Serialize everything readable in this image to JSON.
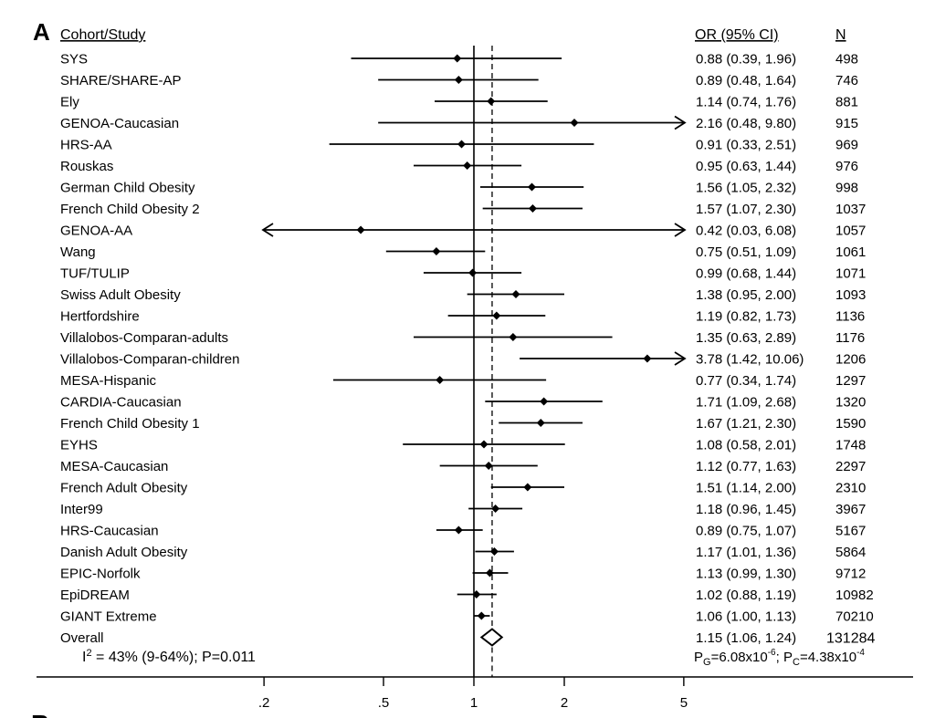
{
  "panel_label": "A",
  "next_panel_label": "B",
  "headers": {
    "study": "Cohort/Study",
    "or": "OR (95% CI)",
    "n": "N"
  },
  "chart_data": {
    "type": "forest",
    "title": "",
    "xscale": "log",
    "xlim": [
      0.12,
      6.2
    ],
    "xticks": [
      0.2,
      0.5,
      1,
      2,
      5
    ],
    "xtick_labels": [
      ".2",
      ".5",
      "1",
      "2",
      "5"
    ],
    "reference_line": 1,
    "overall_line": 1.15,
    "studies": [
      {
        "name": "SYS",
        "or": 0.88,
        "lo": 0.39,
        "hi": 1.96,
        "or_text": "0.88 (0.39, 1.96)",
        "n": "498",
        "arrow_left": false,
        "arrow_right": false
      },
      {
        "name": "SHARE/SHARE-AP",
        "or": 0.89,
        "lo": 0.48,
        "hi": 1.64,
        "or_text": "0.89 (0.48, 1.64)",
        "n": "746",
        "arrow_left": false,
        "arrow_right": false
      },
      {
        "name": "Ely",
        "or": 1.14,
        "lo": 0.74,
        "hi": 1.76,
        "or_text": "1.14 (0.74, 1.76)",
        "n": "881",
        "arrow_left": false,
        "arrow_right": false
      },
      {
        "name": "GENOA-Caucasian",
        "or": 2.16,
        "lo": 0.48,
        "hi": 9.8,
        "or_text": "2.16 (0.48, 9.80)",
        "n": "915",
        "arrow_left": false,
        "arrow_right": true
      },
      {
        "name": "HRS-AA",
        "or": 0.91,
        "lo": 0.33,
        "hi": 2.51,
        "or_text": "0.91 (0.33, 2.51)",
        "n": "969",
        "arrow_left": false,
        "arrow_right": false
      },
      {
        "name": "Rouskas",
        "or": 0.95,
        "lo": 0.63,
        "hi": 1.44,
        "or_text": "0.95 (0.63, 1.44)",
        "n": "976",
        "arrow_left": false,
        "arrow_right": false
      },
      {
        "name": "German Child Obesity",
        "or": 1.56,
        "lo": 1.05,
        "hi": 2.32,
        "or_text": "1.56 (1.05, 2.32)",
        "n": "998",
        "arrow_left": false,
        "arrow_right": false
      },
      {
        "name": "French Child Obesity 2",
        "or": 1.57,
        "lo": 1.07,
        "hi": 2.3,
        "or_text": "1.57 (1.07, 2.30)",
        "n": "1037",
        "arrow_left": false,
        "arrow_right": false
      },
      {
        "name": "GENOA-AA",
        "or": 0.42,
        "lo": 0.03,
        "hi": 6.08,
        "or_text": "0.42 (0.03, 6.08)",
        "n": "1057",
        "arrow_left": true,
        "arrow_right": true
      },
      {
        "name": "Wang",
        "or": 0.75,
        "lo": 0.51,
        "hi": 1.09,
        "or_text": "0.75 (0.51, 1.09)",
        "n": "1061",
        "arrow_left": false,
        "arrow_right": false
      },
      {
        "name": "TUF/TULIP",
        "or": 0.99,
        "lo": 0.68,
        "hi": 1.44,
        "or_text": "0.99 (0.68, 1.44)",
        "n": "1071",
        "arrow_left": false,
        "arrow_right": false
      },
      {
        "name": "Swiss Adult Obesity",
        "or": 1.38,
        "lo": 0.95,
        "hi": 2.0,
        "or_text": "1.38 (0.95, 2.00)",
        "n": "1093",
        "arrow_left": false,
        "arrow_right": false
      },
      {
        "name": "Hertfordshire",
        "or": 1.19,
        "lo": 0.82,
        "hi": 1.73,
        "or_text": "1.19 (0.82, 1.73)",
        "n": "1136",
        "arrow_left": false,
        "arrow_right": false
      },
      {
        "name": "Villalobos-Comparan-adults",
        "or": 1.35,
        "lo": 0.63,
        "hi": 2.89,
        "or_text": "1.35 (0.63, 2.89)",
        "n": "1176",
        "arrow_left": false,
        "arrow_right": false
      },
      {
        "name": "Villalobos-Comparan-children",
        "or": 3.78,
        "lo": 1.42,
        "hi": 10.06,
        "or_text": "3.78 (1.42, 10.06)",
        "n": "1206",
        "arrow_left": false,
        "arrow_right": true
      },
      {
        "name": "MESA-Hispanic",
        "or": 0.77,
        "lo": 0.34,
        "hi": 1.74,
        "or_text": "0.77 (0.34, 1.74)",
        "n": "1297",
        "arrow_left": false,
        "arrow_right": false
      },
      {
        "name": "CARDIA-Caucasian",
        "or": 1.71,
        "lo": 1.09,
        "hi": 2.68,
        "or_text": "1.71 (1.09, 2.68)",
        "n": "1320",
        "arrow_left": false,
        "arrow_right": false
      },
      {
        "name": "French Child Obesity 1",
        "or": 1.67,
        "lo": 1.21,
        "hi": 2.3,
        "or_text": "1.67 (1.21, 2.30)",
        "n": "1590",
        "arrow_left": false,
        "arrow_right": false
      },
      {
        "name": "EYHS",
        "or": 1.08,
        "lo": 0.58,
        "hi": 2.01,
        "or_text": "1.08 (0.58, 2.01)",
        "n": "1748",
        "arrow_left": false,
        "arrow_right": false
      },
      {
        "name": "MESA-Caucasian",
        "or": 1.12,
        "lo": 0.77,
        "hi": 1.63,
        "or_text": "1.12 (0.77, 1.63)",
        "n": "2297",
        "arrow_left": false,
        "arrow_right": false
      },
      {
        "name": "French Adult Obesity",
        "or": 1.51,
        "lo": 1.14,
        "hi": 2.0,
        "or_text": "1.51 (1.14, 2.00)",
        "n": "2310",
        "arrow_left": false,
        "arrow_right": false
      },
      {
        "name": "Inter99",
        "or": 1.18,
        "lo": 0.96,
        "hi": 1.45,
        "or_text": "1.18 (0.96, 1.45)",
        "n": "3967",
        "arrow_left": false,
        "arrow_right": false
      },
      {
        "name": "HRS-Caucasian",
        "or": 0.89,
        "lo": 0.75,
        "hi": 1.07,
        "or_text": "0.89 (0.75, 1.07)",
        "n": "5167",
        "arrow_left": false,
        "arrow_right": false
      },
      {
        "name": "Danish Adult Obesity",
        "or": 1.17,
        "lo": 1.01,
        "hi": 1.36,
        "or_text": "1.17 (1.01, 1.36)",
        "n": "5864",
        "arrow_left": false,
        "arrow_right": false
      },
      {
        "name": "EPIC-Norfolk",
        "or": 1.13,
        "lo": 0.99,
        "hi": 1.3,
        "or_text": "1.13 (0.99, 1.30)",
        "n": "9712",
        "arrow_left": false,
        "arrow_right": false
      },
      {
        "name": "EpiDREAM",
        "or": 1.02,
        "lo": 0.88,
        "hi": 1.19,
        "or_text": "1.02 (0.88, 1.19)",
        "n": "10982",
        "arrow_left": false,
        "arrow_right": false
      },
      {
        "name": "GIANT Extreme",
        "or": 1.06,
        "lo": 1.0,
        "hi": 1.13,
        "or_text": "1.06 (1.00, 1.13)",
        "n": "70210",
        "arrow_left": false,
        "arrow_right": false
      }
    ],
    "overall": {
      "name": "Overall",
      "or": 1.15,
      "lo": 1.06,
      "hi": 1.24,
      "or_text": "1.15 (1.06, 1.24)",
      "n": "131284"
    },
    "heterogeneity": {
      "prefix": "I",
      "sup": "2",
      "rest": " = 43% (9-64%); P=0.011"
    },
    "pvalues": {
      "pg_label": "P",
      "pg_sub": "G",
      "pg_value": "=6.08x10",
      "pg_exp": "-6",
      "sep": "; ",
      "pc_label": "P",
      "pc_sub": "C",
      "pc_value": "=4.38x10",
      "pc_exp": "-4"
    }
  }
}
